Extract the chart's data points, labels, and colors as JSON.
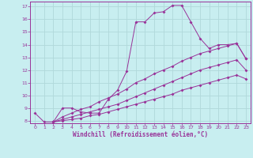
{
  "xlabel": "Windchill (Refroidissement éolien,°C)",
  "bg_color": "#c8eef0",
  "grid_color": "#b0d8da",
  "line_color": "#993399",
  "xlim": [
    -0.5,
    23.5
  ],
  "ylim": [
    7.8,
    17.4
  ],
  "xticks": [
    0,
    1,
    2,
    3,
    4,
    5,
    6,
    7,
    8,
    9,
    10,
    11,
    12,
    13,
    14,
    15,
    16,
    17,
    18,
    19,
    20,
    21,
    22,
    23
  ],
  "yticks": [
    8,
    9,
    10,
    11,
    12,
    13,
    14,
    15,
    16,
    17
  ],
  "curve1_x": [
    0,
    1,
    2,
    3,
    4,
    5,
    6,
    7,
    8,
    9,
    10,
    11,
    12,
    13,
    14,
    15,
    16,
    17,
    18,
    19,
    20,
    21,
    22,
    23
  ],
  "curve1_y": [
    8.6,
    7.9,
    7.9,
    9.0,
    9.0,
    8.7,
    8.6,
    8.6,
    9.7,
    10.4,
    11.9,
    15.8,
    15.8,
    16.5,
    16.6,
    17.1,
    17.1,
    15.8,
    14.5,
    13.7,
    14.0,
    14.0,
    14.1,
    12.9
  ],
  "curve2_x": [
    2,
    3,
    4,
    5,
    6,
    7,
    8,
    9,
    10,
    11,
    12,
    13,
    14,
    15,
    16,
    17,
    18,
    19,
    20,
    21,
    22,
    23
  ],
  "curve2_y": [
    7.9,
    8.3,
    8.6,
    8.9,
    9.1,
    9.5,
    9.8,
    10.1,
    10.5,
    11.0,
    11.3,
    11.7,
    12.0,
    12.3,
    12.7,
    13.0,
    13.3,
    13.5,
    13.7,
    13.9,
    14.1,
    12.9
  ],
  "curve3_x": [
    2,
    3,
    4,
    5,
    6,
    7,
    8,
    9,
    10,
    11,
    12,
    13,
    14,
    15,
    16,
    17,
    18,
    19,
    20,
    21,
    22,
    23
  ],
  "curve3_y": [
    7.9,
    8.1,
    8.3,
    8.5,
    8.7,
    8.9,
    9.1,
    9.3,
    9.6,
    9.9,
    10.2,
    10.5,
    10.8,
    11.1,
    11.4,
    11.7,
    12.0,
    12.2,
    12.4,
    12.6,
    12.8,
    12.0
  ],
  "curve4_x": [
    2,
    3,
    4,
    5,
    6,
    7,
    8,
    9,
    10,
    11,
    12,
    13,
    14,
    15,
    16,
    17,
    18,
    19,
    20,
    21,
    22,
    23
  ],
  "curve4_y": [
    7.9,
    8.0,
    8.1,
    8.2,
    8.4,
    8.5,
    8.7,
    8.9,
    9.1,
    9.3,
    9.5,
    9.7,
    9.9,
    10.1,
    10.4,
    10.6,
    10.8,
    11.0,
    11.2,
    11.4,
    11.6,
    11.3
  ]
}
